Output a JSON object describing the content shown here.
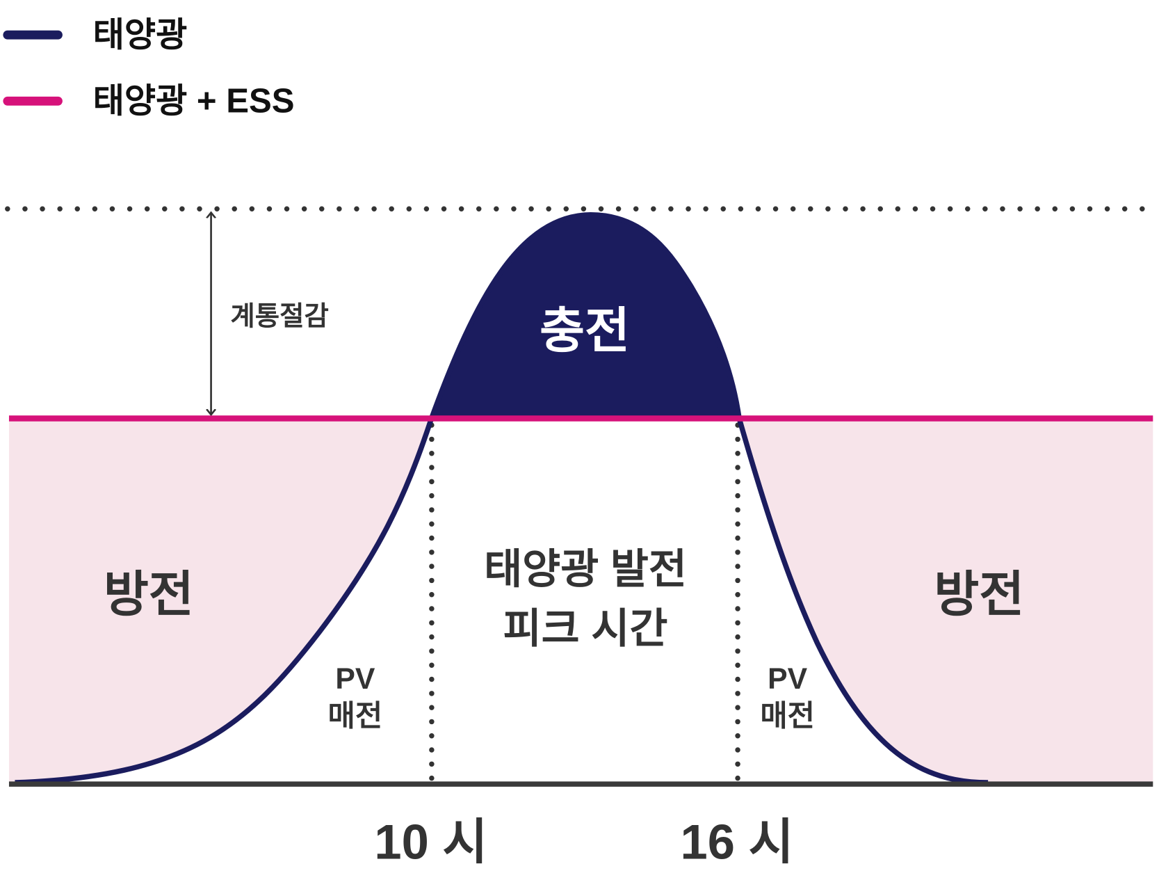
{
  "legend": [
    {
      "label": "태양광"
    },
    {
      "label": "태양광 + ESS"
    }
  ],
  "annotations": {
    "grid_reduction": "계통절감",
    "charge": "충전",
    "discharge_left": "방전",
    "discharge_right": "방전",
    "peak": [
      "태양광 발전",
      "피크 시간"
    ],
    "pv_sale_left": [
      "PV",
      "매전"
    ],
    "pv_sale_right": [
      "PV",
      "매전"
    ]
  },
  "x_labels": [
    "10 시",
    "16 시"
  ]
}
